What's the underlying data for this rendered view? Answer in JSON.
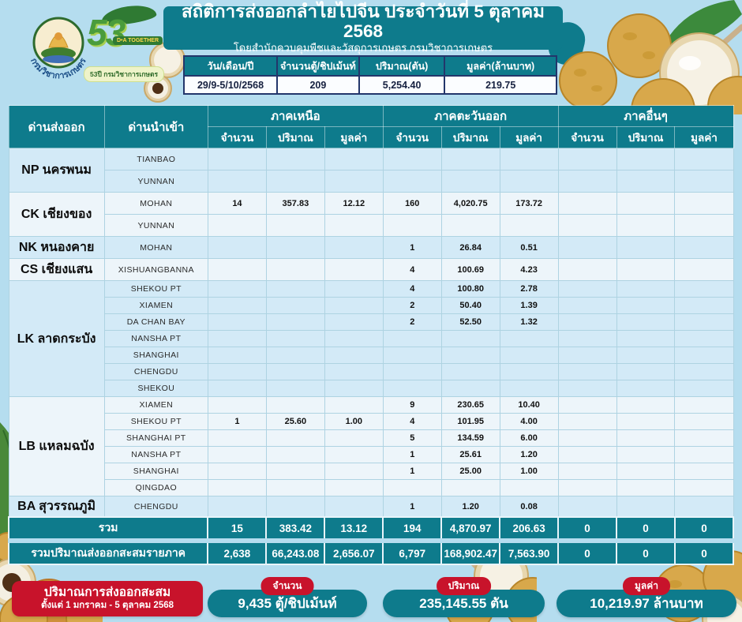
{
  "colors": {
    "teal": "#0e7b8c",
    "navy_border": "#23366b",
    "red": "#c8132b",
    "page_bg": "#b5ddef",
    "row_blue": "#d3eaf7",
    "row_white": "#edf5fa"
  },
  "logos": {
    "doa_seal_label": "กรมวิชาการเกษตร",
    "anniversary_number": "53",
    "anniversary_badge": "D•A TOGETHER",
    "anniversary_banner": "53ปี กรมวิชาการเกษตร"
  },
  "header": {
    "title": "สถิติการส่งออกลำไยไปจีน ประจำวันที่ 5 ตุลาคม 2568",
    "subtitle": "โดยสำนักควบคุมพืชและวัสดุการเกษตร กรมวิชาการเกษตร"
  },
  "summary_table": {
    "headers": [
      "วัน/เดือน/ปี",
      "จำนวนตู้/ชิปเม้นท์",
      "ปริมาณ(ตัน)",
      "มูลค่า(ล้านบาท)"
    ],
    "values": [
      "29/9-5/10/2568",
      "209",
      "5,254.40",
      "219.75"
    ]
  },
  "main_table": {
    "col_export": "ด่านส่งออก",
    "col_import": "ด่านนำเข้า",
    "regions": [
      "ภาคเหนือ",
      "ภาคตะวันออก",
      "ภาคอื่นๆ"
    ],
    "sub_headers": [
      "จำนวน",
      "ปริมาณ",
      "มูลค่า"
    ],
    "rows": [
      {
        "group": "NP นครพนม",
        "span": 2,
        "shade": "blue",
        "port": "TIANBAO",
        "cells": [
          "",
          "",
          "",
          "",
          "",
          "",
          "",
          "",
          ""
        ]
      },
      {
        "shade": "blue",
        "port": "YUNNAN",
        "cells": [
          "",
          "",
          "",
          "",
          "",
          "",
          "",
          "",
          ""
        ]
      },
      {
        "group": "CK เชียงของ",
        "span": 2,
        "shade": "white",
        "port": "MOHAN",
        "cells": [
          "14",
          "357.83",
          "12.12",
          "160",
          "4,020.75",
          "173.72",
          "",
          "",
          ""
        ]
      },
      {
        "shade": "white",
        "port": "YUNNAN",
        "cells": [
          "",
          "",
          "",
          "",
          "",
          "",
          "",
          "",
          ""
        ]
      },
      {
        "group": "NK หนองคาย",
        "span": 1,
        "shade": "blue",
        "port": "MOHAN",
        "cells": [
          "",
          "",
          "",
          "1",
          "26.84",
          "0.51",
          "",
          "",
          ""
        ]
      },
      {
        "group": "CS เชียงแสน",
        "span": 1,
        "shade": "white",
        "port": "XISHUANGBANNA",
        "cells": [
          "",
          "",
          "",
          "4",
          "100.69",
          "4.23",
          "",
          "",
          ""
        ]
      },
      {
        "group": "LK ลาดกระบัง",
        "span": 7,
        "shade": "blue",
        "port": "SHEKOU PT",
        "cells": [
          "",
          "",
          "",
          "4",
          "100.80",
          "2.78",
          "",
          "",
          ""
        ]
      },
      {
        "shade": "blue",
        "port": "XIAMEN",
        "cells": [
          "",
          "",
          "",
          "2",
          "50.40",
          "1.39",
          "",
          "",
          ""
        ]
      },
      {
        "shade": "blue",
        "port": "DA CHAN BAY",
        "cells": [
          "",
          "",
          "",
          "2",
          "52.50",
          "1.32",
          "",
          "",
          ""
        ]
      },
      {
        "shade": "blue",
        "port": "NANSHA PT",
        "cells": [
          "",
          "",
          "",
          "",
          "",
          "",
          "",
          "",
          ""
        ]
      },
      {
        "shade": "blue",
        "port": "SHANGHAI",
        "cells": [
          "",
          "",
          "",
          "",
          "",
          "",
          "",
          "",
          ""
        ]
      },
      {
        "shade": "blue",
        "port": "CHENGDU",
        "cells": [
          "",
          "",
          "",
          "",
          "",
          "",
          "",
          "",
          ""
        ]
      },
      {
        "shade": "blue",
        "port": "SHEKOU",
        "cells": [
          "",
          "",
          "",
          "",
          "",
          "",
          "",
          "",
          ""
        ]
      },
      {
        "group": "LB แหลมฉบัง",
        "span": 6,
        "shade": "white",
        "port": "XIAMEN",
        "cells": [
          "",
          "",
          "",
          "9",
          "230.65",
          "10.40",
          "",
          "",
          ""
        ]
      },
      {
        "shade": "white",
        "port": "SHEKOU PT",
        "cells": [
          "1",
          "25.60",
          "1.00",
          "4",
          "101.95",
          "4.00",
          "",
          "",
          ""
        ]
      },
      {
        "shade": "white",
        "port": "SHANGHAI PT",
        "cells": [
          "",
          "",
          "",
          "5",
          "134.59",
          "6.00",
          "",
          "",
          ""
        ]
      },
      {
        "shade": "white",
        "port": "NANSHA PT",
        "cells": [
          "",
          "",
          "",
          "1",
          "25.61",
          "1.20",
          "",
          "",
          ""
        ]
      },
      {
        "shade": "white",
        "port": "SHANGHAI",
        "cells": [
          "",
          "",
          "",
          "1",
          "25.00",
          "1.00",
          "",
          "",
          ""
        ]
      },
      {
        "shade": "white",
        "port": "QINGDAO",
        "cells": [
          "",
          "",
          "",
          "",
          "",
          "",
          "",
          "",
          ""
        ]
      },
      {
        "group": "BA สุวรรณภูมิ",
        "span": 1,
        "shade": "blue",
        "port": "CHENGDU",
        "cells": [
          "",
          "",
          "",
          "1",
          "1.20",
          "0.08",
          "",
          "",
          ""
        ]
      }
    ],
    "total_row": {
      "label": "รวม",
      "cells": [
        "15",
        "383.42",
        "13.12",
        "194",
        "4,870.97",
        "206.63",
        "0",
        "0",
        "0"
      ]
    },
    "cumulative_row": {
      "label": "รวมปริมาณส่งออกสะสมรายภาค",
      "cells": [
        "2,638",
        "66,243.08",
        "2,656.07",
        "6,797",
        "168,902.47",
        "7,563.90",
        "0",
        "0",
        "0"
      ]
    }
  },
  "footer": {
    "cumulative_box": {
      "title": "ปริมาณการส่งออกสะสม",
      "subtitle": "ตั้งแต่ 1 มกราคม  - 5 ตุลาคม 2568"
    },
    "pills": [
      {
        "badge": "จำนวน",
        "value": "9,435 ตู้/ชิปเม้นท์"
      },
      {
        "badge": "ปริมาณ",
        "value": "235,145.55 ตัน"
      },
      {
        "badge": "มูลค่า",
        "value": "10,219.97 ล้านบาท"
      }
    ]
  }
}
